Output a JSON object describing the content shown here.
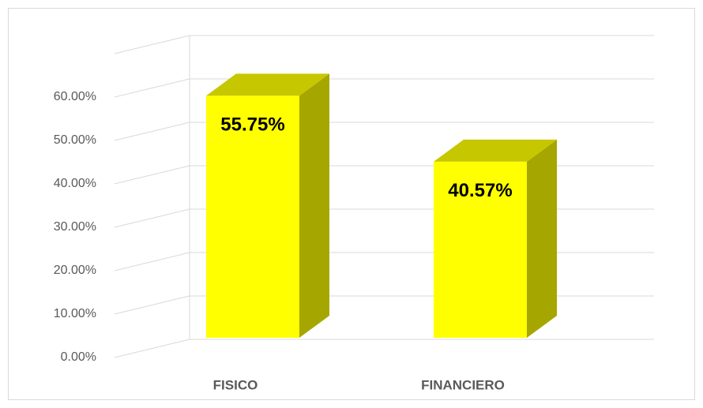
{
  "chart_data": {
    "type": "bar3d",
    "categories": [
      "FISICO",
      "FINANCIERO"
    ],
    "values": [
      55.75,
      40.57
    ],
    "value_labels": [
      "55.75%",
      "40.57%"
    ],
    "color": "#ffff00",
    "ylim": [
      0,
      70
    ],
    "yticks": [
      {
        "value": 0,
        "label": "0.00%"
      },
      {
        "value": 10,
        "label": "10.00%"
      },
      {
        "value": 20,
        "label": "20.00%"
      },
      {
        "value": 30,
        "label": "30.00%"
      },
      {
        "value": 40,
        "label": "40.00%"
      },
      {
        "value": 50,
        "label": "50.00%"
      },
      {
        "value": 60,
        "label": "60.00%"
      }
    ],
    "grid": true
  }
}
